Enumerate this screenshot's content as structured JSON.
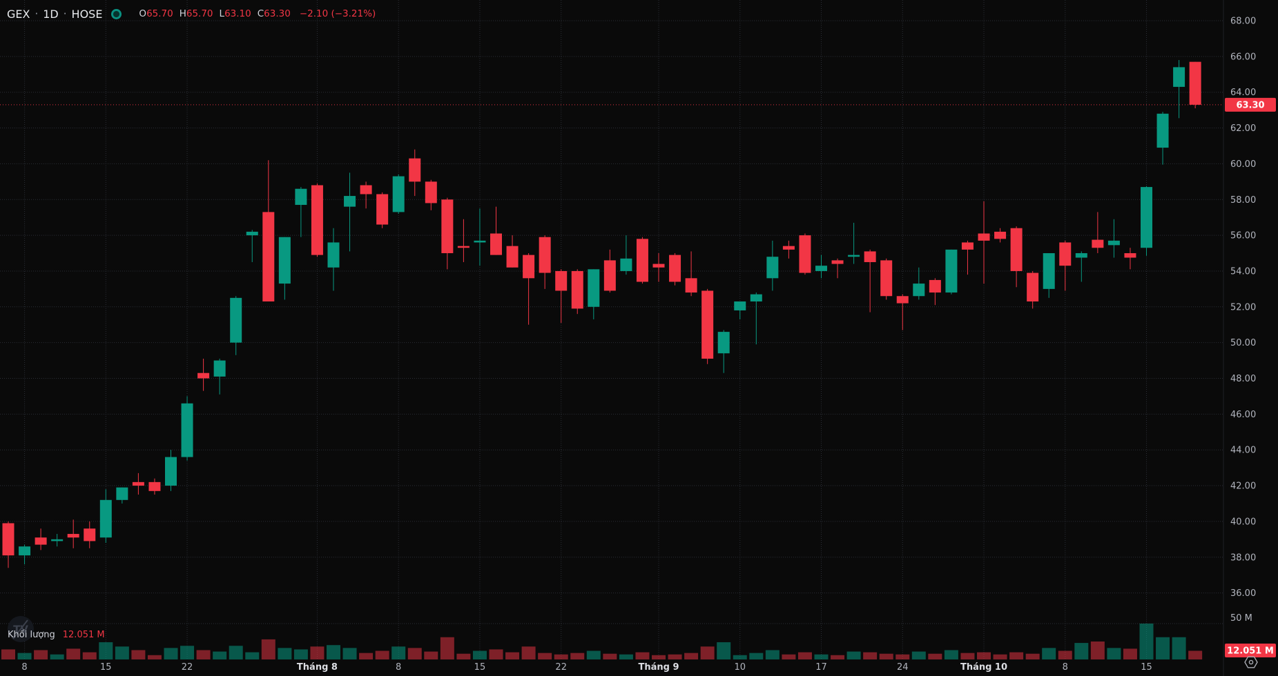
{
  "header": {
    "symbol": "GEX",
    "interval": "1D",
    "exchange": "HOSE",
    "separator": "·",
    "ohlc": {
      "o_label": "O",
      "o": "65.70",
      "h_label": "H",
      "h": "65.70",
      "l_label": "L",
      "l": "63.10",
      "c_label": "C",
      "c": "63.30",
      "change": "−2.10 (−3.21%)"
    }
  },
  "volume_pane": {
    "label": "Khối lượng",
    "value": "12.051 M",
    "axis_max_label": "50 M",
    "badge_value": "12.051 M"
  },
  "price_axis": {
    "last_price_label": "63.30"
  },
  "watermark_logo_text": "TV",
  "colors": {
    "background": "#0a0a0a",
    "up": "#089981",
    "down": "#f23645",
    "volume_up": "rgba(8,153,129,0.55)",
    "volume_down": "rgba(242,54,69,0.5)",
    "grid": "#2b2e36",
    "axis_text": "#b2b5be",
    "axis_text_bright": "#dcdee3",
    "badge_text": "#ffffff"
  },
  "chart_data": {
    "type": "candlestick",
    "title": "GEX · 1D · HOSE",
    "symbol": "GEX",
    "interval": "1D",
    "exchange": "HOSE",
    "legend_position": "top-left",
    "grid": true,
    "y_ticks": [
      68,
      66,
      64,
      62,
      60,
      58,
      56,
      54,
      52,
      50,
      48,
      46,
      44,
      42,
      40,
      38,
      36
    ],
    "ylim_visible": [
      35.3,
      69.1
    ],
    "last": {
      "price": 63.3,
      "change": -2.1,
      "change_pct": -3.21,
      "volume_m": 12.051
    },
    "volume_axis": {
      "max_label": "50 M",
      "max_value_m": 50
    },
    "time_ticks": [
      {
        "label": "8",
        "i": 2,
        "major": false
      },
      {
        "label": "15",
        "i": 7,
        "major": false
      },
      {
        "label": "22",
        "i": 12,
        "major": false
      },
      {
        "label": "Tháng 8",
        "i": 20,
        "major": true
      },
      {
        "label": "8",
        "i": 25,
        "major": false
      },
      {
        "label": "15",
        "i": 30,
        "major": false
      },
      {
        "label": "22",
        "i": 35,
        "major": false
      },
      {
        "label": "Tháng 9",
        "i": 41,
        "major": true
      },
      {
        "label": "10",
        "i": 46,
        "major": false
      },
      {
        "label": "17",
        "i": 51,
        "major": false
      },
      {
        "label": "24",
        "i": 56,
        "major": false
      },
      {
        "label": "Tháng 10",
        "i": 61,
        "major": true
      },
      {
        "label": "8",
        "i": 66,
        "major": false
      },
      {
        "label": "15",
        "i": 71,
        "major": false
      }
    ],
    "candle_format": [
      "open",
      "high",
      "low",
      "close",
      "volume_millions"
    ],
    "candles": [
      [
        39.9,
        40.0,
        37.4,
        38.1,
        14
      ],
      [
        38.1,
        38.7,
        37.6,
        38.6,
        9
      ],
      [
        39.1,
        39.6,
        38.4,
        38.7,
        13
      ],
      [
        38.9,
        39.3,
        38.6,
        39.0,
        7
      ],
      [
        39.3,
        40.1,
        38.5,
        39.1,
        15
      ],
      [
        39.6,
        40.0,
        38.5,
        38.9,
        10
      ],
      [
        39.1,
        41.8,
        38.8,
        41.2,
        24
      ],
      [
        41.2,
        41.9,
        41.0,
        41.9,
        18
      ],
      [
        42.2,
        42.7,
        41.5,
        42.0,
        13
      ],
      [
        42.2,
        42.4,
        41.5,
        41.7,
        6
      ],
      [
        42.0,
        44.0,
        41.7,
        43.6,
        16
      ],
      [
        43.6,
        47.0,
        43.4,
        46.6,
        19
      ],
      [
        48.3,
        49.1,
        47.3,
        48.0,
        13
      ],
      [
        48.1,
        49.1,
        47.1,
        49.0,
        11
      ],
      [
        50.0,
        52.6,
        49.3,
        52.5,
        19
      ],
      [
        56.0,
        56.3,
        54.5,
        56.2,
        10
      ],
      [
        57.3,
        60.2,
        52.3,
        52.3,
        28
      ],
      [
        53.3,
        55.9,
        52.4,
        55.9,
        16
      ],
      [
        57.7,
        58.7,
        55.9,
        58.6,
        14
      ],
      [
        58.8,
        58.9,
        54.8,
        54.9,
        18
      ],
      [
        54.2,
        56.4,
        52.9,
        55.6,
        20
      ],
      [
        57.6,
        59.5,
        55.1,
        58.2,
        16
      ],
      [
        58.8,
        59.0,
        57.5,
        58.3,
        9
      ],
      [
        58.3,
        58.4,
        56.4,
        56.6,
        12
      ],
      [
        57.3,
        59.4,
        57.2,
        59.3,
        18
      ],
      [
        60.3,
        60.8,
        58.2,
        59.0,
        16
      ],
      [
        59.0,
        59.1,
        57.4,
        57.8,
        11
      ],
      [
        58.0,
        58.1,
        54.1,
        55.0,
        31
      ],
      [
        55.4,
        56.9,
        54.5,
        55.3,
        8
      ],
      [
        55.6,
        57.5,
        54.3,
        55.7,
        12
      ],
      [
        56.1,
        57.6,
        54.9,
        54.9,
        14
      ],
      [
        55.4,
        56.0,
        54.2,
        54.2,
        10
      ],
      [
        54.9,
        55.0,
        51.0,
        53.6,
        18
      ],
      [
        55.9,
        56.0,
        53.0,
        53.9,
        9
      ],
      [
        54.0,
        54.1,
        51.1,
        52.9,
        7
      ],
      [
        54.0,
        54.1,
        51.6,
        51.9,
        9
      ],
      [
        52.0,
        54.1,
        51.3,
        54.1,
        12
      ],
      [
        54.6,
        55.2,
        52.8,
        52.9,
        8
      ],
      [
        54.0,
        56.0,
        53.8,
        54.7,
        7
      ],
      [
        55.8,
        55.9,
        53.3,
        53.4,
        10
      ],
      [
        54.4,
        55.0,
        53.4,
        54.2,
        6
      ],
      [
        54.9,
        55.0,
        53.2,
        53.4,
        7
      ],
      [
        53.6,
        55.1,
        52.6,
        52.8,
        9
      ],
      [
        52.9,
        53.0,
        48.8,
        49.1,
        18
      ],
      [
        49.4,
        50.7,
        48.3,
        50.6,
        24
      ],
      [
        51.8,
        52.3,
        51.3,
        52.3,
        6
      ],
      [
        52.3,
        52.8,
        49.9,
        52.7,
        9
      ],
      [
        53.6,
        55.7,
        52.9,
        54.8,
        13
      ],
      [
        55.4,
        55.7,
        54.7,
        55.2,
        7
      ],
      [
        56.0,
        56.1,
        53.8,
        53.9,
        10
      ],
      [
        54.0,
        54.9,
        53.6,
        54.3,
        7
      ],
      [
        54.6,
        54.7,
        53.6,
        54.4,
        6
      ],
      [
        54.8,
        56.7,
        54.4,
        54.9,
        11
      ],
      [
        55.1,
        55.2,
        51.7,
        54.5,
        10
      ],
      [
        54.6,
        54.7,
        52.4,
        52.6,
        8
      ],
      [
        52.6,
        52.7,
        50.7,
        52.2,
        7
      ],
      [
        52.6,
        54.2,
        52.4,
        53.3,
        11
      ],
      [
        53.5,
        53.6,
        52.1,
        52.8,
        8
      ],
      [
        52.8,
        55.2,
        52.7,
        55.2,
        13
      ],
      [
        55.6,
        55.7,
        53.8,
        55.2,
        9
      ],
      [
        56.1,
        57.9,
        53.3,
        55.7,
        10
      ],
      [
        56.2,
        56.4,
        55.6,
        55.8,
        7
      ],
      [
        56.4,
        56.5,
        53.1,
        54.0,
        10
      ],
      [
        53.9,
        54.0,
        51.9,
        52.3,
        8
      ],
      [
        53.0,
        55.0,
        52.5,
        55.0,
        16
      ],
      [
        55.6,
        55.7,
        52.9,
        54.3,
        12
      ],
      [
        54.75,
        55.1,
        53.4,
        55.0,
        23
      ],
      [
        55.75,
        57.3,
        55.0,
        55.3,
        25
      ],
      [
        55.45,
        56.9,
        54.75,
        55.7,
        16
      ],
      [
        55.0,
        55.3,
        54.1,
        54.75,
        15
      ],
      [
        55.3,
        58.75,
        54.85,
        58.7,
        50
      ],
      [
        60.9,
        62.9,
        59.95,
        62.8,
        31
      ],
      [
        64.3,
        65.8,
        62.55,
        65.4,
        31
      ],
      [
        65.7,
        65.7,
        63.1,
        63.3,
        12.051
      ]
    ]
  }
}
